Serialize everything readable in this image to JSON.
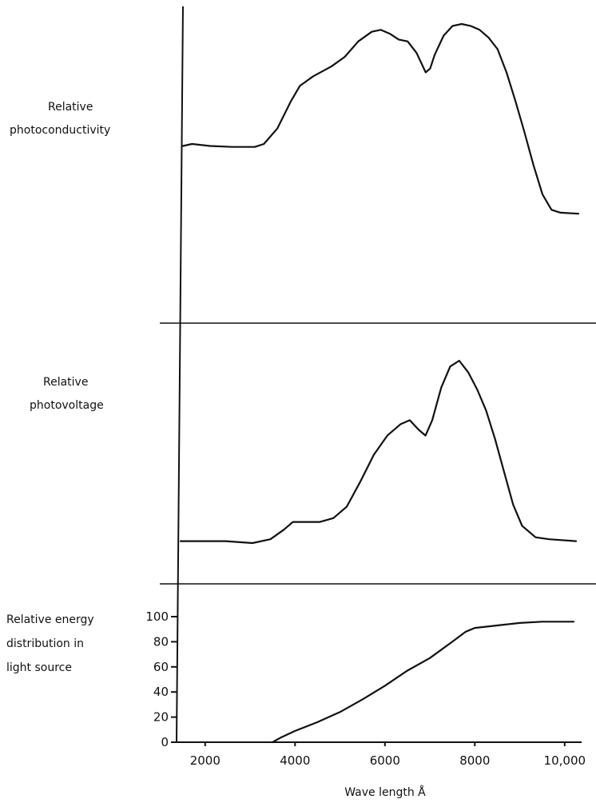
{
  "chart_data": {
    "type": "line",
    "xlabel": "Wave length Å",
    "x_ticks": [
      "2000",
      "4000",
      "6000",
      "8000",
      "10,000"
    ],
    "x_tick_values": [
      2000,
      4000,
      6000,
      8000,
      10000
    ],
    "xlim": [
      1400,
      10200
    ],
    "grid": false,
    "panels": [
      {
        "title_lines": [
          "Relative",
          "photoconductivity"
        ],
        "y_ticks": [],
        "ylim": [
          0,
          100
        ],
        "series": [
          {
            "x": [
              1400,
              1600,
              2000,
              2500,
              3000,
              3200,
              3500,
              3800,
              4000,
              4300,
              4700,
              5000,
              5300,
              5600,
              5800,
              6000,
              6200,
              6400,
              6600,
              6800,
              6900,
              7000,
              7200,
              7400,
              7600,
              7800,
              8000,
              8200,
              8400,
              8600,
              8800,
              9000,
              9200,
              9400,
              9600,
              9800,
              10200
            ],
            "y": [
              37,
              38,
              37,
              36.5,
              36.5,
              38,
              46,
              60,
              68,
              73,
              78,
              83,
              91,
              96,
              97,
              95,
              92,
              91,
              85,
              75,
              77,
              84,
              94,
              99,
              100,
              99,
              97,
              93,
              87,
              75,
              60,
              44,
              27,
              12,
              4,
              2.5,
              2
            ]
          }
        ]
      },
      {
        "title_lines": [
          "Relative",
          "photovoltage"
        ],
        "y_ticks": [],
        "ylim": [
          0,
          100
        ],
        "series": [
          {
            "x": [
              1400,
              1800,
              2400,
              3000,
              3400,
              3700,
              3900,
              4100,
              4500,
              4800,
              5100,
              5400,
              5700,
              6000,
              6300,
              6500,
              6700,
              6850,
              7000,
              7200,
              7400,
              7600,
              7800,
              8000,
              8200,
              8400,
              8600,
              8800,
              9000,
              9300,
              9600,
              10200
            ],
            "y": [
              6,
              6,
              6,
              5,
              7,
              12,
              16,
              16,
              16,
              18,
              24,
              37,
              51,
              61,
              67,
              69,
              64,
              61,
              69,
              86,
              97,
              100,
              94,
              85,
              74,
              59,
              42,
              25,
              14,
              8,
              7,
              6
            ]
          }
        ]
      },
      {
        "title_lines": [
          "Relative energy",
          "distribution in",
          "light source"
        ],
        "y_ticks": [
          "0",
          "20",
          "40",
          "60",
          "80",
          "100"
        ],
        "y_tick_values": [
          0,
          20,
          40,
          60,
          80,
          100
        ],
        "ylim": [
          0,
          100
        ],
        "series": [
          {
            "x": [
              3500,
              3700,
              4000,
              4500,
              5000,
              5500,
              6000,
              6500,
              7000,
              7500,
              7800,
              8000,
              8500,
              9000,
              9500,
              10200
            ],
            "y": [
              0,
              4,
              9,
              16,
              24,
              34,
              45,
              57,
              67,
              80,
              88,
              91,
              93,
              95,
              96,
              96
            ]
          }
        ]
      }
    ]
  }
}
